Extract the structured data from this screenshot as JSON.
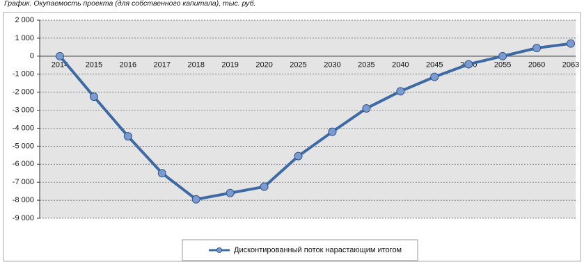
{
  "chart_data": {
    "type": "line",
    "title": "График. Окупаемость проекта (для собственного капитала), тыс. руб.",
    "categories": [
      "2014",
      "2015",
      "2016",
      "2017",
      "2018",
      "2019",
      "2020",
      "2025",
      "2030",
      "2035",
      "2040",
      "2045",
      "2050",
      "2055",
      "2060",
      "2063"
    ],
    "series": [
      {
        "name": "Дисконтированный поток нарастающим итогом",
        "color": "#3d6aa5",
        "values": [
          0,
          -2250,
          -4450,
          -6500,
          -7950,
          -7600,
          -7250,
          -5550,
          -4200,
          -2900,
          -1950,
          -1150,
          -450,
          0,
          450,
          700
        ]
      }
    ],
    "ylim": [
      -9000,
      2000
    ],
    "yticks": [
      {
        "value": 2000,
        "label": "2 000"
      },
      {
        "value": 1000,
        "label": "1 000"
      },
      0,
      {
        "value": -1000,
        "label": "-1 000"
      },
      {
        "value": -2000,
        "label": "-2 000"
      },
      {
        "value": -3000,
        "label": "-3 000"
      },
      {
        "value": -4000,
        "label": "-4 000"
      },
      {
        "value": -5000,
        "label": "-5 000"
      },
      {
        "value": -6000,
        "label": "-6 000"
      },
      {
        "value": -7000,
        "label": "-7 000"
      },
      {
        "value": -8000,
        "label": "-8 000"
      },
      {
        "value": -9000,
        "label": "-9 000"
      }
    ],
    "grid": true,
    "legend": "bottom"
  }
}
